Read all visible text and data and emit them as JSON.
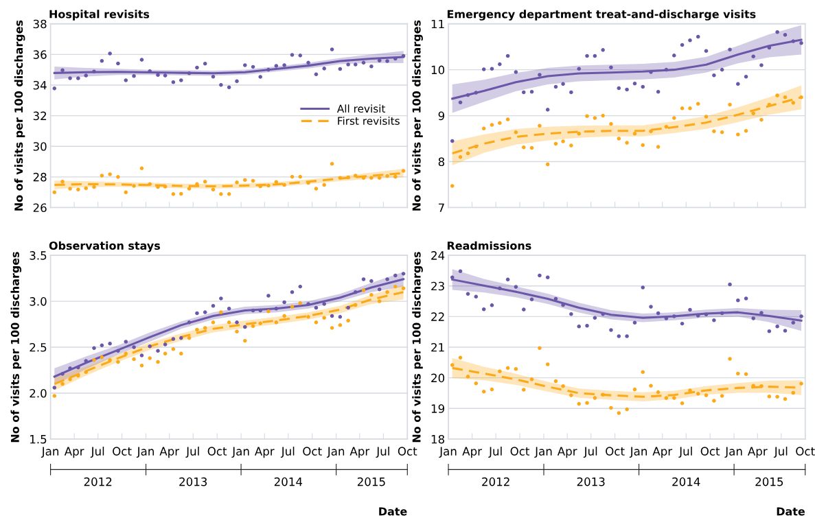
{
  "chart_data": [
    {
      "type": "scatter",
      "title": "Hospital revisits",
      "ylabel": "No of visits per 100 discharges",
      "tick_labels": "y",
      "grid": "y",
      "legend": "center right",
      "x": [
        "2012-01-16",
        "2012-02-16",
        "2012-03-16",
        "2012-04-16",
        "2012-05-16",
        "2012-06-16",
        "2012-07-16",
        "2012-08-16",
        "2012-09-16",
        "2012-10-16",
        "2012-11-16",
        "2012-12-16",
        "2013-01-16",
        "2013-02-16",
        "2013-03-16",
        "2013-04-16",
        "2013-05-16",
        "2013-06-16",
        "2013-07-16",
        "2013-08-16",
        "2013-09-16",
        "2013-10-16",
        "2013-11-16",
        "2013-12-16",
        "2014-01-16",
        "2014-02-16",
        "2014-03-16",
        "2014-04-16",
        "2014-05-16",
        "2014-06-16",
        "2014-07-16",
        "2014-08-16",
        "2014-09-16",
        "2014-10-16",
        "2014-11-16",
        "2014-12-16",
        "2015-01-16",
        "2015-02-16",
        "2015-03-16",
        "2015-04-16",
        "2015-05-16",
        "2015-06-16",
        "2015-07-16",
        "2015-08-16",
        "2015-09-16"
      ],
      "xlim": [
        "2012-01-01",
        "2015-10-01"
      ],
      "xticks": [
        {
          "value": "2012-01-01",
          "label": null
        },
        {
          "value": "2012-04-01",
          "label": null
        },
        {
          "value": "2012-07-01",
          "label": null
        },
        {
          "value": "2012-10-01",
          "label": null
        },
        {
          "value": "2013-01-01",
          "label": null
        },
        {
          "value": "2013-04-01",
          "label": null
        },
        {
          "value": "2013-07-01",
          "label": null
        },
        {
          "value": "2013-10-01",
          "label": null
        },
        {
          "value": "2014-01-01",
          "label": null
        },
        {
          "value": "2014-04-01",
          "label": null
        },
        {
          "value": "2014-07-01",
          "label": null
        },
        {
          "value": "2014-10-01",
          "label": null
        },
        {
          "value": "2015-01-01",
          "label": null
        },
        {
          "value": "2015-04-01",
          "label": null
        },
        {
          "value": "2015-07-01",
          "label": null
        },
        {
          "value": "2015-10-01",
          "label": null
        }
      ],
      "ylim": [
        26,
        38
      ],
      "yticks": [
        26,
        28,
        30,
        32,
        34,
        36,
        38
      ],
      "series": [
        {
          "type": "scatter",
          "marker": "circle",
          "color": "#6a57a8",
          "values": [
            33.78,
            34.97,
            34.45,
            34.44,
            34.62,
            34.88,
            35.58,
            36.06,
            35.41,
            34.31,
            34.59,
            35.65,
            34.91,
            34.66,
            34.62,
            34.19,
            34.31,
            34.77,
            35.14,
            35.4,
            34.55,
            34.01,
            33.85,
            34.25,
            35.3,
            35.19,
            34.54,
            35.0,
            35.25,
            35.3,
            35.97,
            35.93,
            35.46,
            34.7,
            35.08,
            36.33,
            35.05,
            35.34,
            35.34,
            35.46,
            35.22,
            35.6,
            35.57,
            35.72,
            35.9
          ]
        },
        {
          "type": "scatter",
          "marker": "circle",
          "color": "#fba919",
          "values": [
            27.0,
            27.69,
            27.23,
            27.18,
            27.26,
            27.34,
            28.08,
            28.17,
            28.0,
            27.0,
            27.41,
            28.56,
            27.53,
            27.34,
            27.37,
            26.88,
            26.9,
            27.23,
            27.53,
            27.69,
            27.18,
            26.88,
            26.88,
            27.64,
            27.8,
            27.75,
            27.39,
            27.43,
            27.67,
            27.48,
            28.01,
            28.01,
            27.61,
            27.23,
            27.48,
            28.86,
            27.94,
            27.97,
            28.08,
            27.94,
            27.94,
            27.94,
            28.06,
            28.01,
            28.4
          ]
        },
        {
          "type": "line",
          "name": "All revisit",
          "line_style": "solid",
          "marker": "none",
          "color": "#6a57a8",
          "x": [
            "2012-01-16",
            "2012-05-16",
            "2012-09-16",
            "2013-01-16",
            "2013-05-16",
            "2013-09-16",
            "2014-01-16",
            "2014-05-16",
            "2014-09-16",
            "2015-01-16",
            "2015-05-16",
            "2015-09-16"
          ],
          "values": [
            34.79,
            34.84,
            34.86,
            34.83,
            34.8,
            34.77,
            34.84,
            35.05,
            35.27,
            35.57,
            35.72,
            35.83
          ],
          "lower": [
            34.37,
            34.56,
            34.66,
            34.66,
            34.63,
            34.6,
            34.67,
            34.88,
            35.09,
            35.37,
            35.44,
            35.43
          ],
          "upper": [
            35.21,
            35.12,
            35.06,
            35.0,
            34.97,
            34.94,
            35.01,
            35.22,
            35.45,
            35.77,
            36.0,
            36.23
          ]
        },
        {
          "type": "line",
          "name": "First revisits",
          "line_style": "dashed",
          "marker": "none",
          "color": "#fba919",
          "x": [
            "2012-01-16",
            "2012-05-16",
            "2012-09-16",
            "2013-01-16",
            "2013-05-16",
            "2013-09-16",
            "2014-01-16",
            "2014-05-16",
            "2014-09-16",
            "2015-01-16",
            "2015-05-16",
            "2015-09-16"
          ],
          "values": [
            27.48,
            27.53,
            27.51,
            27.47,
            27.41,
            27.39,
            27.43,
            27.51,
            27.69,
            27.89,
            28.08,
            28.25
          ],
          "lower": [
            27.2,
            27.33,
            27.35,
            27.32,
            27.26,
            27.24,
            27.28,
            27.36,
            27.54,
            27.73,
            27.88,
            27.97
          ],
          "upper": [
            27.76,
            27.73,
            27.67,
            27.62,
            27.56,
            27.54,
            27.58,
            27.66,
            27.84,
            28.05,
            28.28,
            28.53
          ]
        }
      ]
    },
    {
      "type": "scatter",
      "title": "Emergency department treat-and-discharge visits",
      "ylabel": "No of visits per 100 discharges",
      "tick_labels": "y",
      "grid": "y",
      "x": [
        "2012-01-16",
        "2012-02-16",
        "2012-03-16",
        "2012-04-16",
        "2012-05-16",
        "2012-06-16",
        "2012-07-16",
        "2012-08-16",
        "2012-09-16",
        "2012-10-16",
        "2012-11-16",
        "2012-12-16",
        "2013-01-16",
        "2013-02-16",
        "2013-03-16",
        "2013-04-16",
        "2013-05-16",
        "2013-06-16",
        "2013-07-16",
        "2013-08-16",
        "2013-09-16",
        "2013-10-16",
        "2013-11-16",
        "2013-12-16",
        "2014-01-16",
        "2014-02-16",
        "2014-03-16",
        "2014-04-16",
        "2014-05-16",
        "2014-06-16",
        "2014-07-16",
        "2014-08-16",
        "2014-09-16",
        "2014-10-16",
        "2014-11-16",
        "2014-12-16",
        "2015-01-16",
        "2015-02-16",
        "2015-03-16",
        "2015-04-16",
        "2015-05-16",
        "2015-06-16",
        "2015-07-16",
        "2015-08-16",
        "2015-09-16"
      ],
      "xlim": [
        "2012-01-01",
        "2015-10-01"
      ],
      "xticks": [
        {
          "value": "2012-01-01",
          "label": null
        },
        {
          "value": "2012-04-01",
          "label": null
        },
        {
          "value": "2012-07-01",
          "label": null
        },
        {
          "value": "2012-10-01",
          "label": null
        },
        {
          "value": "2013-01-01",
          "label": null
        },
        {
          "value": "2013-04-01",
          "label": null
        },
        {
          "value": "2013-07-01",
          "label": null
        },
        {
          "value": "2013-10-01",
          "label": null
        },
        {
          "value": "2014-01-01",
          "label": null
        },
        {
          "value": "2014-04-01",
          "label": null
        },
        {
          "value": "2014-07-01",
          "label": null
        },
        {
          "value": "2014-10-01",
          "label": null
        },
        {
          "value": "2015-01-01",
          "label": null
        },
        {
          "value": "2015-04-01",
          "label": null
        },
        {
          "value": "2015-07-01",
          "label": null
        },
        {
          "value": "2015-10-01",
          "label": null
        }
      ],
      "ylim": [
        7,
        11
      ],
      "yticks": [
        7,
        8,
        9,
        10,
        11
      ],
      "series": [
        {
          "type": "scatter",
          "marker": "circle",
          "color": "#6a57a8",
          "values": [
            8.45,
            9.29,
            9.45,
            9.5,
            10.01,
            10.02,
            10.12,
            10.3,
            9.95,
            9.51,
            9.52,
            9.89,
            9.13,
            9.63,
            9.69,
            9.51,
            10.02,
            10.3,
            10.3,
            10.43,
            10.05,
            9.6,
            9.57,
            9.7,
            9.63,
            9.95,
            9.52,
            10.0,
            10.31,
            10.54,
            10.64,
            10.72,
            10.41,
            9.88,
            10.0,
            10.44,
            9.69,
            9.85,
            10.29,
            10.1,
            10.48,
            10.82,
            10.76,
            10.62,
            10.58
          ]
        },
        {
          "type": "scatter",
          "marker": "circle",
          "color": "#fba919",
          "values": [
            7.47,
            8.1,
            8.18,
            8.33,
            8.72,
            8.8,
            8.84,
            8.92,
            8.64,
            8.31,
            8.3,
            8.78,
            7.94,
            8.39,
            8.44,
            8.35,
            8.61,
            8.99,
            8.95,
            9.0,
            8.82,
            8.5,
            8.41,
            8.61,
            8.36,
            8.66,
            8.32,
            8.76,
            8.95,
            9.16,
            9.16,
            9.26,
            8.98,
            8.66,
            8.64,
            9.24,
            8.59,
            8.67,
            9.05,
            8.91,
            9.24,
            9.44,
            9.4,
            9.28,
            9.4
          ]
        },
        {
          "type": "line",
          "line_style": "solid",
          "marker": "none",
          "color": "#6a57a8",
          "x": [
            "2012-01-16",
            "2012-05-16",
            "2012-09-16",
            "2013-01-16",
            "2013-05-16",
            "2013-09-16",
            "2014-01-16",
            "2014-05-16",
            "2014-09-16",
            "2015-01-16",
            "2015-05-16",
            "2015-09-16"
          ],
          "values": [
            9.37,
            9.54,
            9.73,
            9.86,
            9.92,
            9.94,
            9.96,
            10.0,
            10.11,
            10.33,
            10.52,
            10.65
          ],
          "lower": [
            9.06,
            9.3,
            9.53,
            9.68,
            9.75,
            9.77,
            9.79,
            9.83,
            9.94,
            10.14,
            10.27,
            10.33
          ],
          "upper": [
            9.68,
            9.78,
            9.93,
            10.04,
            10.09,
            10.11,
            10.13,
            10.17,
            10.28,
            10.52,
            10.77,
            10.97
          ]
        },
        {
          "type": "line",
          "line_style": "dashed",
          "marker": "none",
          "color": "#fba919",
          "x": [
            "2012-01-16",
            "2012-05-16",
            "2012-09-16",
            "2013-01-16",
            "2013-05-16",
            "2013-09-16",
            "2014-01-16",
            "2014-05-16",
            "2014-09-16",
            "2015-01-16",
            "2015-05-16",
            "2015-09-16"
          ],
          "values": [
            8.18,
            8.39,
            8.54,
            8.61,
            8.65,
            8.67,
            8.67,
            8.75,
            8.85,
            9.02,
            9.21,
            9.4
          ],
          "lower": [
            7.92,
            8.19,
            8.37,
            8.46,
            8.52,
            8.55,
            8.55,
            8.62,
            8.71,
            8.86,
            9.02,
            9.14
          ],
          "upper": [
            8.44,
            8.59,
            8.71,
            8.76,
            8.78,
            8.79,
            8.79,
            8.88,
            8.99,
            9.18,
            9.4,
            9.66
          ]
        }
      ]
    },
    {
      "type": "scatter",
      "title": "Observation stays",
      "ylabel": "No of visits per 100 discharges",
      "xlabel": "Date",
      "grid": "y",
      "x": [
        "2012-01-16",
        "2012-02-16",
        "2012-03-16",
        "2012-04-16",
        "2012-05-16",
        "2012-06-16",
        "2012-07-16",
        "2012-08-16",
        "2012-09-16",
        "2012-10-16",
        "2012-11-16",
        "2012-12-16",
        "2013-01-16",
        "2013-02-16",
        "2013-03-16",
        "2013-04-16",
        "2013-05-16",
        "2013-06-16",
        "2013-07-16",
        "2013-08-16",
        "2013-09-16",
        "2013-10-16",
        "2013-11-16",
        "2013-12-16",
        "2014-01-16",
        "2014-02-16",
        "2014-03-16",
        "2014-04-16",
        "2014-05-16",
        "2014-06-16",
        "2014-07-16",
        "2014-08-16",
        "2014-09-16",
        "2014-10-16",
        "2014-11-16",
        "2014-12-16",
        "2015-01-16",
        "2015-02-16",
        "2015-03-16",
        "2015-04-16",
        "2015-05-16",
        "2015-06-16",
        "2015-07-16",
        "2015-08-16",
        "2015-09-16"
      ],
      "xlim": [
        "2012-01-01",
        "2015-10-01"
      ],
      "xticks": [
        {
          "value": "2012-01-01",
          "label": "Jan"
        },
        {
          "value": "2012-04-01",
          "label": "Apr"
        },
        {
          "value": "2012-07-01",
          "label": "Jul"
        },
        {
          "value": "2012-10-01",
          "label": "Oct"
        },
        {
          "value": "2013-01-01",
          "label": "Jan"
        },
        {
          "value": "2013-04-01",
          "label": "Apr"
        },
        {
          "value": "2013-07-01",
          "label": "Jul"
        },
        {
          "value": "2013-10-01",
          "label": "Oct"
        },
        {
          "value": "2014-01-01",
          "label": "Jan"
        },
        {
          "value": "2014-04-01",
          "label": "Apr"
        },
        {
          "value": "2014-07-01",
          "label": "Jul"
        },
        {
          "value": "2014-10-01",
          "label": "Oct"
        },
        {
          "value": "2015-01-01",
          "label": "Jan"
        },
        {
          "value": "2015-04-01",
          "label": "Apr"
        },
        {
          "value": "2015-07-01",
          "label": "Jul"
        },
        {
          "value": "2015-10-01",
          "label": "Oct"
        }
      ],
      "x2lim": [
        "2012-01-01",
        "2015-10-01"
      ],
      "x2ticks": [
        {
          "value": "2012-01-01",
          "label": null
        },
        {
          "value": "2012-07-01",
          "label": "2012"
        },
        {
          "value": "2013-01-01",
          "label": null
        },
        {
          "value": "2013-07-01",
          "label": "2013"
        },
        {
          "value": "2014-01-01",
          "label": null
        },
        {
          "value": "2014-07-01",
          "label": "2014"
        },
        {
          "value": "2015-01-01",
          "label": null
        },
        {
          "value": "2015-05-16",
          "label": "2015"
        },
        {
          "value": "2015-10-01",
          "label": null
        }
      ],
      "ylim": [
        1.5,
        3.5
      ],
      "yticks": [
        {
          "value": 1.5,
          "label": "1.5"
        },
        {
          "value": 2,
          "label": "2.0"
        },
        {
          "value": 2.5,
          "label": "2.5"
        },
        {
          "value": 3,
          "label": "3.0"
        },
        {
          "value": 3.5,
          "label": "3.5"
        }
      ],
      "series": [
        {
          "type": "scatter",
          "marker": "circle",
          "color": "#6a57a8",
          "values": [
            2.06,
            2.21,
            2.27,
            2.28,
            2.35,
            2.49,
            2.52,
            2.54,
            2.46,
            2.56,
            2.5,
            2.41,
            2.51,
            2.46,
            2.53,
            2.59,
            2.6,
            2.77,
            2.87,
            2.88,
            2.95,
            3.03,
            2.92,
            2.77,
            2.72,
            2.9,
            2.9,
            3.06,
            2.92,
            2.99,
            3.1,
            3.16,
            2.97,
            2.93,
            2.97,
            2.84,
            2.83,
            2.93,
            3.1,
            3.24,
            3.22,
            3.13,
            3.24,
            3.28,
            3.3
          ]
        },
        {
          "type": "scatter",
          "marker": "circle",
          "color": "#fba919",
          "values": [
            1.97,
            2.1,
            2.15,
            2.19,
            2.23,
            2.36,
            2.39,
            2.36,
            2.34,
            2.43,
            2.37,
            2.3,
            2.38,
            2.34,
            2.43,
            2.48,
            2.43,
            2.6,
            2.69,
            2.71,
            2.77,
            2.88,
            2.77,
            2.67,
            2.57,
            2.73,
            2.76,
            2.89,
            2.77,
            2.84,
            2.94,
            2.98,
            2.83,
            2.77,
            2.82,
            2.71,
            2.74,
            2.79,
            2.96,
            3.12,
            3.07,
            3.0,
            3.1,
            3.16,
            3.14
          ]
        },
        {
          "type": "line",
          "line_style": "solid",
          "marker": "none",
          "color": "#6a57a8",
          "x": [
            "2012-01-16",
            "2012-05-16",
            "2012-09-16",
            "2013-01-16",
            "2013-05-16",
            "2013-09-16",
            "2014-01-16",
            "2014-05-16",
            "2014-09-16",
            "2015-01-16",
            "2015-05-16",
            "2015-09-16"
          ],
          "values": [
            2.18,
            2.33,
            2.47,
            2.61,
            2.74,
            2.84,
            2.9,
            2.92,
            2.96,
            3.04,
            3.15,
            3.24
          ],
          "lower": [
            2.09,
            2.26,
            2.42,
            2.56,
            2.7,
            2.8,
            2.86,
            2.88,
            2.92,
            3.0,
            3.1,
            3.16
          ],
          "upper": [
            2.27,
            2.4,
            2.52,
            2.66,
            2.78,
            2.88,
            2.94,
            2.96,
            3.0,
            3.08,
            3.2,
            3.32
          ]
        },
        {
          "type": "line",
          "line_style": "dashed",
          "marker": "none",
          "color": "#fba919",
          "x": [
            "2012-01-16",
            "2012-05-16",
            "2012-09-16",
            "2013-01-16",
            "2013-05-16",
            "2013-09-16",
            "2014-01-16",
            "2014-05-16",
            "2014-09-16",
            "2015-01-16",
            "2015-05-16",
            "2015-09-16"
          ],
          "values": [
            2.1,
            2.24,
            2.38,
            2.51,
            2.61,
            2.7,
            2.75,
            2.79,
            2.84,
            2.91,
            3.02,
            3.1
          ],
          "lower": [
            2.03,
            2.19,
            2.34,
            2.47,
            2.57,
            2.66,
            2.71,
            2.75,
            2.8,
            2.87,
            2.97,
            3.02
          ],
          "upper": [
            2.17,
            2.29,
            2.42,
            2.55,
            2.65,
            2.74,
            2.79,
            2.83,
            2.88,
            2.95,
            3.07,
            3.18
          ]
        }
      ]
    },
    {
      "type": "scatter",
      "title": "Readmissions",
      "ylabel": "No of visits per 100 discharges",
      "xlabel": "Date",
      "grid": "y",
      "x": [
        "2012-01-16",
        "2012-02-16",
        "2012-03-16",
        "2012-04-16",
        "2012-05-16",
        "2012-06-16",
        "2012-07-16",
        "2012-08-16",
        "2012-09-16",
        "2012-10-16",
        "2012-11-16",
        "2012-12-16",
        "2013-01-16",
        "2013-02-16",
        "2013-03-16",
        "2013-04-16",
        "2013-05-16",
        "2013-06-16",
        "2013-07-16",
        "2013-08-16",
        "2013-09-16",
        "2013-10-16",
        "2013-11-16",
        "2013-12-16",
        "2014-01-16",
        "2014-02-16",
        "2014-03-16",
        "2014-04-16",
        "2014-05-16",
        "2014-06-16",
        "2014-07-16",
        "2014-08-16",
        "2014-09-16",
        "2014-10-16",
        "2014-11-16",
        "2014-12-16",
        "2015-01-16",
        "2015-02-16",
        "2015-03-16",
        "2015-04-16",
        "2015-05-16",
        "2015-06-16",
        "2015-07-16",
        "2015-08-16",
        "2015-09-16"
      ],
      "xlim": [
        "2012-01-01",
        "2015-10-01"
      ],
      "xticks": [
        {
          "value": "2012-01-01",
          "label": "Jan"
        },
        {
          "value": "2012-04-01",
          "label": "Apr"
        },
        {
          "value": "2012-07-01",
          "label": "Jul"
        },
        {
          "value": "2012-10-01",
          "label": "Oct"
        },
        {
          "value": "2013-01-01",
          "label": "Jan"
        },
        {
          "value": "2013-04-01",
          "label": "Apr"
        },
        {
          "value": "2013-07-01",
          "label": "Jul"
        },
        {
          "value": "2013-10-01",
          "label": "Oct"
        },
        {
          "value": "2014-01-01",
          "label": "Jan"
        },
        {
          "value": "2014-04-01",
          "label": "Apr"
        },
        {
          "value": "2014-07-01",
          "label": "Jul"
        },
        {
          "value": "2014-10-01",
          "label": "Oct"
        },
        {
          "value": "2015-01-01",
          "label": "Jan"
        },
        {
          "value": "2015-04-01",
          "label": "Apr"
        },
        {
          "value": "2015-07-01",
          "label": "Jul"
        },
        {
          "value": "2015-10-01",
          "label": "Oct"
        }
      ],
      "x2lim": [
        "2012-01-01",
        "2015-10-01"
      ],
      "x2ticks": [
        {
          "value": "2012-01-01",
          "label": null
        },
        {
          "value": "2012-07-01",
          "label": "2012"
        },
        {
          "value": "2013-01-01",
          "label": null
        },
        {
          "value": "2013-07-01",
          "label": "2013"
        },
        {
          "value": "2014-01-01",
          "label": null
        },
        {
          "value": "2014-07-01",
          "label": "2014"
        },
        {
          "value": "2015-01-01",
          "label": null
        },
        {
          "value": "2015-05-16",
          "label": "2015"
        },
        {
          "value": "2015-10-01",
          "label": null
        }
      ],
      "ylim": [
        18,
        24
      ],
      "yticks": [
        18,
        19,
        20,
        21,
        22,
        23,
        24
      ],
      "series": [
        {
          "type": "scatter",
          "marker": "circle",
          "color": "#6a57a8",
          "values": [
            23.28,
            23.48,
            22.74,
            22.65,
            22.24,
            22.37,
            22.92,
            23.21,
            22.97,
            22.23,
            22.56,
            23.34,
            23.28,
            22.58,
            22.38,
            22.08,
            21.68,
            21.7,
            21.96,
            22.08,
            21.56,
            21.36,
            21.36,
            21.8,
            22.95,
            22.32,
            22.11,
            21.94,
            22.01,
            21.77,
            22.22,
            22.03,
            22.07,
            21.88,
            22.11,
            23.05,
            22.53,
            22.59,
            21.94,
            22.12,
            21.52,
            21.68,
            21.54,
            21.8,
            22.01
          ]
        },
        {
          "type": "scatter",
          "marker": "circle",
          "color": "#fba919",
          "values": [
            20.42,
            20.66,
            20.04,
            19.82,
            19.55,
            19.62,
            20.21,
            20.32,
            20.29,
            19.61,
            19.95,
            20.97,
            20.44,
            19.89,
            19.73,
            19.43,
            19.15,
            19.18,
            19.34,
            19.45,
            19.02,
            18.85,
            18.97,
            19.62,
            20.19,
            19.74,
            19.53,
            19.34,
            19.34,
            19.17,
            19.59,
            19.48,
            19.43,
            19.25,
            19.41,
            20.62,
            20.14,
            20.12,
            19.74,
            19.73,
            19.39,
            19.38,
            19.31,
            19.51,
            19.81
          ]
        },
        {
          "type": "line",
          "line_style": "solid",
          "marker": "none",
          "color": "#6a57a8",
          "x": [
            "2012-01-16",
            "2012-05-16",
            "2012-09-16",
            "2013-01-16",
            "2013-05-16",
            "2013-09-16",
            "2014-01-16",
            "2014-05-16",
            "2014-09-16",
            "2015-01-16",
            "2015-05-16",
            "2015-09-16"
          ],
          "values": [
            23.21,
            23.01,
            22.81,
            22.58,
            22.29,
            22.06,
            21.96,
            22.01,
            22.1,
            22.14,
            22.02,
            21.87
          ],
          "lower": [
            22.87,
            22.79,
            22.63,
            22.41,
            22.13,
            21.91,
            21.82,
            21.88,
            21.97,
            22.0,
            21.82,
            21.53
          ],
          "upper": [
            23.55,
            23.23,
            22.99,
            22.75,
            22.45,
            22.21,
            22.1,
            22.14,
            22.23,
            22.28,
            22.22,
            22.21
          ]
        },
        {
          "type": "line",
          "line_style": "dashed",
          "marker": "none",
          "color": "#fba919",
          "x": [
            "2012-01-16",
            "2012-05-16",
            "2012-09-16",
            "2013-01-16",
            "2013-05-16",
            "2013-09-16",
            "2014-01-16",
            "2014-05-16",
            "2014-09-16",
            "2015-01-16",
            "2015-05-16",
            "2015-09-16"
          ],
          "values": [
            20.32,
            20.14,
            19.95,
            19.71,
            19.5,
            19.43,
            19.38,
            19.44,
            19.59,
            19.67,
            19.71,
            19.68
          ],
          "lower": [
            19.99,
            19.92,
            19.77,
            19.55,
            19.35,
            19.28,
            19.23,
            19.3,
            19.45,
            19.51,
            19.51,
            19.44
          ],
          "upper": [
            20.65,
            20.36,
            20.13,
            19.87,
            19.65,
            19.58,
            19.53,
            19.58,
            19.73,
            19.83,
            19.91,
            19.92
          ]
        }
      ]
    }
  ]
}
